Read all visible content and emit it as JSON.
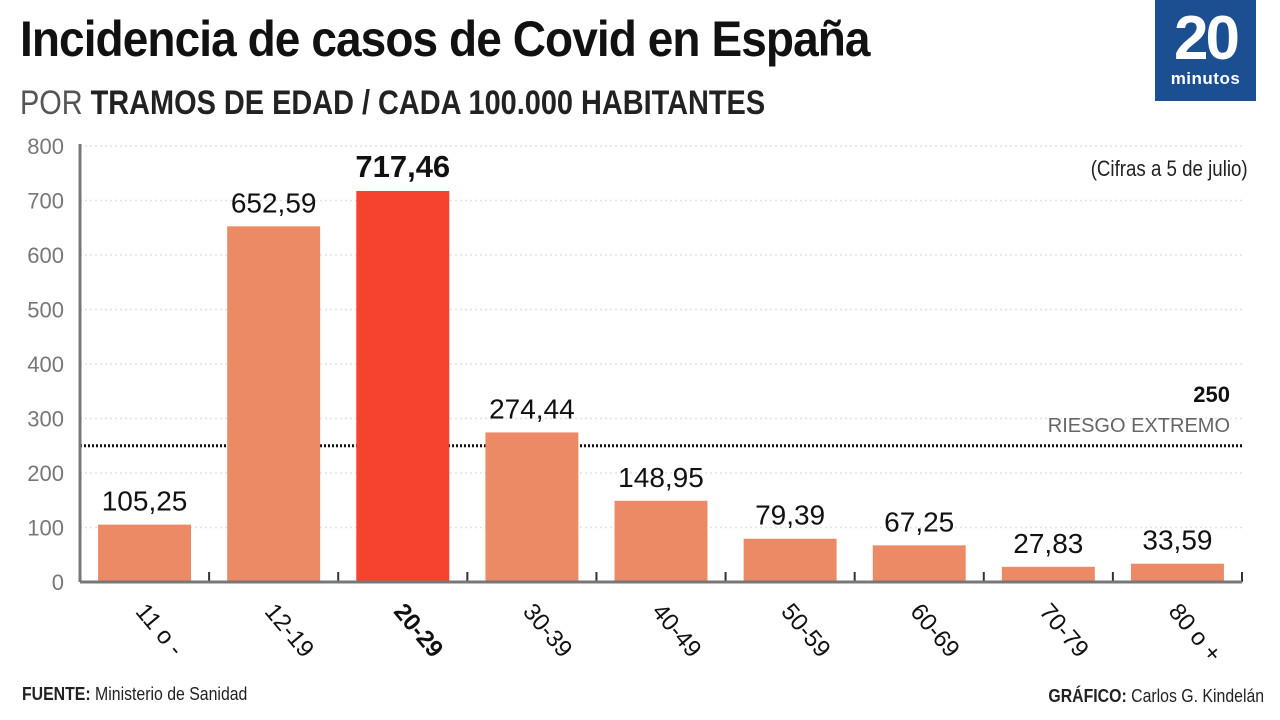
{
  "header": {
    "title": "Incidencia de casos de Covid en España",
    "subtitle_light": "POR ",
    "subtitle_bold": "TRAMOS DE EDAD / CADA 100.000 HABITANTES"
  },
  "logo": {
    "number": "20",
    "word": "minutos"
  },
  "note": "(Cifras a 5 de julio)",
  "footer": {
    "source_label": "FUENTE:",
    "source_value": " Ministerio de Sanidad",
    "credit_label": "GRÁFICO:",
    "credit_value": " Carlos G. Kindelán"
  },
  "colors": {
    "bar": "#ec8a66",
    "highlight": "#f5432d",
    "axis": "#777777",
    "grid": "#e2e2e2",
    "logo_bg": "#1b4f92"
  },
  "chart_data": {
    "type": "bar",
    "title": "Incidencia de casos de Covid en España",
    "subtitle": "POR TRAMOS DE EDAD / CADA 100.000 HABITANTES",
    "xlabel": "",
    "ylabel": "",
    "ylim": [
      0,
      800
    ],
    "yticks": [
      0,
      100,
      200,
      300,
      400,
      500,
      600,
      700,
      800
    ],
    "grid": true,
    "categories": [
      "11 o -",
      "12-19",
      "20-29",
      "30-39",
      "40-49",
      "50-59",
      "60-69",
      "70-79",
      "80 o +"
    ],
    "values": [
      105.25,
      652.59,
      717.46,
      274.44,
      148.95,
      79.39,
      67.25,
      27.83,
      33.59
    ],
    "value_labels": [
      "105,25",
      "652,59",
      "717,46",
      "274,44",
      "148,95",
      "79,39",
      "67,25",
      "27,83",
      "33,59"
    ],
    "highlight_index": 2,
    "reference_line": {
      "value": 250,
      "value_label": "250",
      "label": "RIESGO EXTREMO"
    },
    "annotation": "(Cifras a 5 de julio)"
  }
}
